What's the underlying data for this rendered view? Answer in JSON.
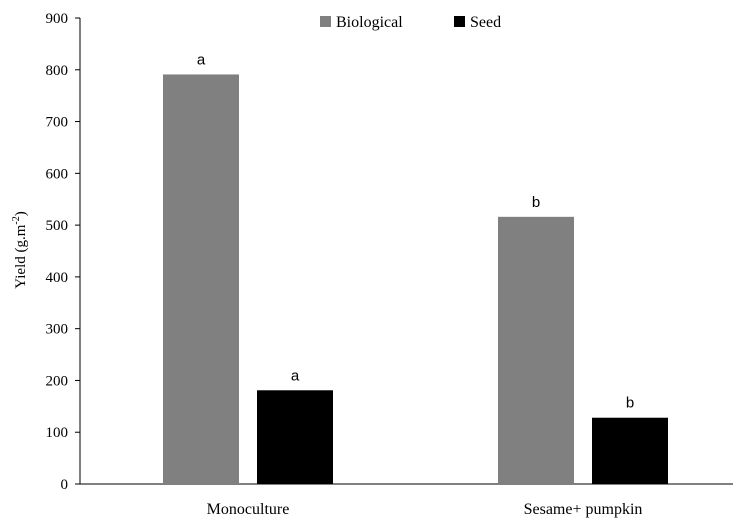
{
  "chart_data": {
    "type": "bar",
    "title": "",
    "xlabel": "",
    "ylabel": "Yield (g.m",
    "ylabel_sup": "-2",
    "ylabel_close": ")",
    "categories": [
      "Monoculture",
      "Sesame+ pumpkin"
    ],
    "series": [
      {
        "name": "Biological",
        "color": "#808080",
        "values": [
          791,
          516
        ],
        "labels": [
          "a",
          "b"
        ]
      },
      {
        "name": "Seed",
        "color": "#000000",
        "values": [
          181,
          128
        ],
        "labels": [
          "a",
          "b"
        ]
      }
    ],
    "ylim": [
      0,
      900
    ],
    "yticks": [
      "0",
      "100",
      "200",
      "300",
      "400",
      "500",
      "600",
      "700",
      "800",
      "900"
    ],
    "grid": false,
    "legend_position": "top-center"
  }
}
